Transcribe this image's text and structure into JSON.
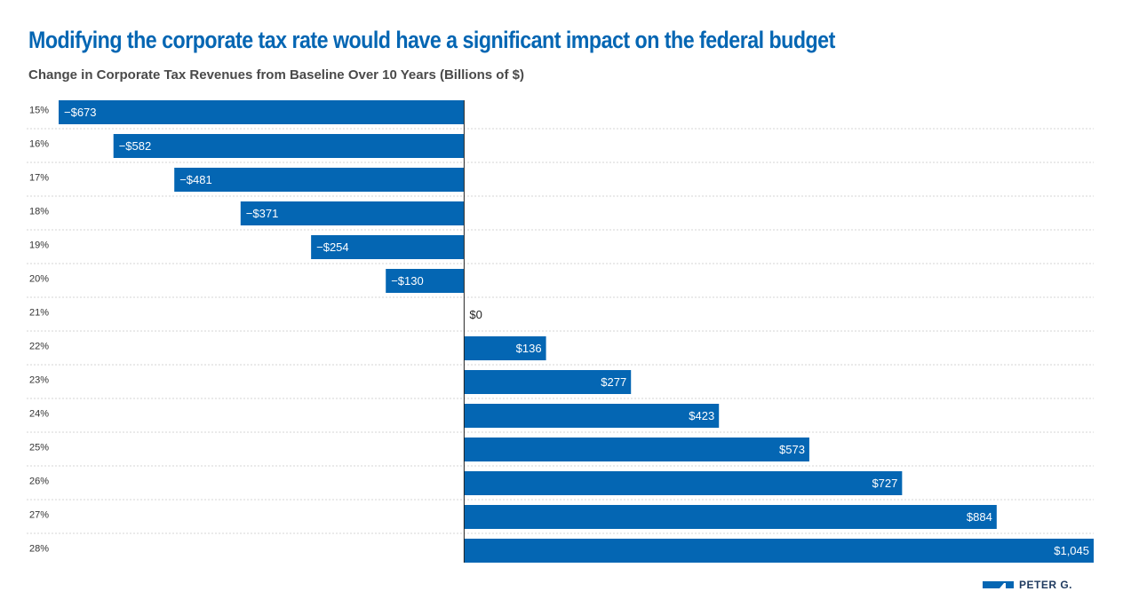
{
  "colors": {
    "bar": "#0466b3",
    "title": "#0466b3",
    "grid": "#d4d4d4",
    "axis": "#222222"
  },
  "title": "Modifying the corporate tax rate would have a significant impact on the federal budget",
  "subtitle": "Change in Corporate Tax Revenues from Baseline Over 10 Years (Billions of $)",
  "logo": {
    "text": "PETER G.",
    "icon": "peterson-foundation-logo-icon"
  },
  "chart_data": {
    "type": "bar",
    "orientation": "horizontal",
    "title": "Modifying the corporate tax rate would have a significant impact on the federal budget",
    "subtitle": "Change in Corporate Tax Revenues from Baseline Over 10 Years (Billions of $)",
    "categories": [
      "15%",
      "16%",
      "17%",
      "18%",
      "19%",
      "20%",
      "21%",
      "22%",
      "23%",
      "24%",
      "25%",
      "26%",
      "27%",
      "28%"
    ],
    "values": [
      -673,
      -582,
      -481,
      -371,
      -254,
      -130,
      0,
      136,
      277,
      423,
      573,
      727,
      884,
      1045
    ],
    "data_labels": [
      "−$673",
      "−$582",
      "−$481",
      "−$371",
      "−$254",
      "−$130",
      "$0",
      "$136",
      "$277",
      "$423",
      "$573",
      "$727",
      "$884",
      "$1,045"
    ],
    "xlim": [
      -673,
      1045
    ],
    "grid": true,
    "legend": "none"
  }
}
